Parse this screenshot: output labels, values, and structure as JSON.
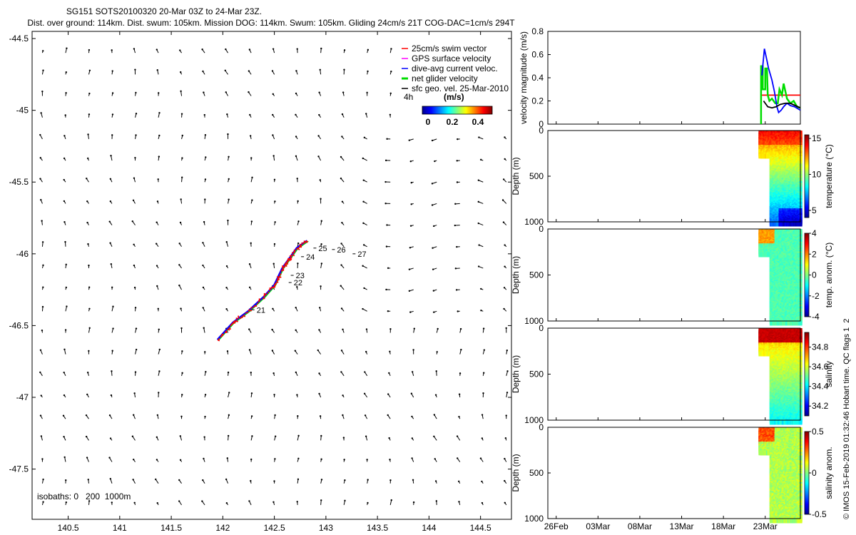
{
  "title": {
    "line1": "SG151 SOTS20100320 20-Mar 03Z to 24-Mar 23Z.",
    "line2": "Dist. over ground: 114km. Dist. swum: 105km. Mission DOG: 114km. Swum: 105km. Gliding 24cm/s 21T COG-DAC=1cm/s 294T"
  },
  "side_note": "© IMOS 15-Feb-2019 01:32:46 Hobart time. QC flags 1  2",
  "chart_data": [
    {
      "type": "scatter",
      "name": "map",
      "x": {
        "ticks": [
          140.5,
          141,
          141.5,
          142,
          142.5,
          143,
          143.5,
          144,
          144.5
        ],
        "range": [
          140.15,
          144.8
        ]
      },
      "y": {
        "ticks": [
          -44.5,
          -45,
          -45.5,
          -46,
          -46.5,
          -47,
          -47.5
        ],
        "range": [
          -47.85,
          -44.45
        ]
      },
      "legend": {
        "position": "top-right",
        "entries": [
          {
            "label": "25cm/s swim vector",
            "color": "#ff0000"
          },
          {
            "label": "GPS surface velocity",
            "color": "#ff00ff"
          },
          {
            "label": "dive-avg current veloc.",
            "color": "#0000ff"
          },
          {
            "label": "net glider velocity",
            "color": "#00dd00"
          },
          {
            "label": "sfc geo. vel. 25-Mar-2010",
            "color": "#000000"
          }
        ]
      },
      "colorbar": {
        "label": "(m/s)",
        "ticks": [
          "0",
          "0.2",
          "0.4"
        ],
        "scale_label": "4h"
      },
      "isobaths_label": "isobaths: 0   200  1000m",
      "track": [
        [
          141.95,
          -46.6
        ],
        [
          142.1,
          -46.48
        ],
        [
          142.25,
          -46.4
        ],
        [
          142.4,
          -46.3
        ],
        [
          142.5,
          -46.22
        ],
        [
          142.58,
          -46.1
        ],
        [
          142.65,
          -46.03
        ],
        [
          142.72,
          -45.96
        ],
        [
          142.82,
          -45.91
        ]
      ],
      "day_labels": [
        {
          "label": "21",
          "x": 142.3,
          "y": -46.39
        },
        {
          "label": "22",
          "x": 142.66,
          "y": -46.2
        },
        {
          "label": "23",
          "x": 142.68,
          "y": -46.15
        },
        {
          "label": "24",
          "x": 142.78,
          "y": -46.02
        },
        {
          "label": "25",
          "x": 142.9,
          "y": -45.96
        },
        {
          "label": "26",
          "x": 143.08,
          "y": -45.97
        },
        {
          "label": "27",
          "x": 143.28,
          "y": -46.0
        }
      ]
    },
    {
      "type": "line",
      "name": "velocity",
      "ylabel": "velocity magnitude (m/s)",
      "y_ticks": [
        0,
        0.2,
        0.4,
        0.6,
        0.8
      ],
      "ylim": [
        0,
        0.8
      ],
      "x_range_days": [
        -26,
        4.2
      ],
      "series": [
        {
          "color": "#ff0000",
          "values": [
            [
              -0.4,
              0.25
            ],
            [
              4.2,
              0.25
            ]
          ]
        },
        {
          "color": "#00dd00",
          "values": [
            [
              -0.5,
              0
            ],
            [
              -0.5,
              0.5
            ],
            [
              -0.3,
              0.5
            ],
            [
              -0.3,
              0.3
            ],
            [
              0,
              0.3
            ],
            [
              0,
              0.48
            ],
            [
              0.2,
              0.48
            ],
            [
              0.3,
              0.25
            ],
            [
              0.5,
              0.2
            ],
            [
              0.8,
              0.22
            ],
            [
              1.2,
              0.18
            ],
            [
              1.5,
              0.18
            ],
            [
              1.7,
              0.3
            ],
            [
              2.0,
              0.25
            ],
            [
              2.2,
              0.35
            ],
            [
              2.6,
              0.22
            ],
            [
              3.0,
              0.18
            ],
            [
              3.4,
              0.2
            ],
            [
              3.8,
              0.15
            ],
            [
              4.2,
              0.14
            ]
          ]
        },
        {
          "color": "#0000ff",
          "values": [
            [
              -0.4,
              0.42
            ],
            [
              -0.1,
              0.65
            ],
            [
              0.2,
              0.55
            ],
            [
              0.4,
              0.48
            ],
            [
              0.8,
              0.38
            ],
            [
              1.1,
              0.28
            ],
            [
              1.4,
              0.15
            ],
            [
              1.6,
              0.1
            ],
            [
              1.9,
              0.12
            ],
            [
              2.2,
              0.15
            ],
            [
              2.6,
              0.18
            ],
            [
              3.0,
              0.16
            ],
            [
              3.5,
              0.15
            ],
            [
              4.2,
              0.12
            ]
          ]
        },
        {
          "color": "#000000",
          "values": [
            [
              -0.2,
              0.2
            ],
            [
              0.3,
              0.15
            ],
            [
              0.8,
              0.14
            ],
            [
              1.3,
              0.15
            ],
            [
              1.8,
              0.17
            ],
            [
              2.4,
              0.18
            ],
            [
              3.0,
              0.18
            ],
            [
              3.6,
              0.16
            ],
            [
              4.2,
              0.14
            ]
          ]
        }
      ]
    },
    {
      "type": "heatmap",
      "name": "temperature",
      "ylabel": "Depth (m)",
      "cbar_label": "temperature (°C)",
      "cbar_ticks": [
        5,
        10,
        15
      ],
      "clim": [
        4,
        15.5
      ],
      "y_ticks": [
        0,
        500,
        1000
      ]
    },
    {
      "type": "heatmap",
      "name": "temp-anomaly",
      "ylabel": "Depth (m)",
      "cbar_label": "temp. anom. (°C)",
      "cbar_ticks": [
        -4,
        -2,
        0,
        2,
        4
      ],
      "clim": [
        -4,
        4
      ],
      "y_ticks": [
        0,
        500,
        1000
      ]
    },
    {
      "type": "heatmap",
      "name": "salinity",
      "ylabel": "Depth (m)",
      "cbar_label": "salinity",
      "cbar_ticks": [
        34.2,
        34.4,
        34.6,
        34.8
      ],
      "clim": [
        34.1,
        34.95
      ],
      "y_ticks": [
        0,
        500,
        1000
      ]
    },
    {
      "type": "heatmap",
      "name": "salinity-anomaly",
      "ylabel": "Depth (m)",
      "cbar_label": "salinity anom.",
      "cbar_ticks": [
        -0.5,
        0,
        0.5
      ],
      "clim": [
        -0.5,
        0.5
      ],
      "y_ticks": [
        0,
        500,
        1000
      ]
    }
  ],
  "time_axis": {
    "labels": [
      "26Feb",
      "03Mar",
      "08Mar",
      "13Mar",
      "18Mar",
      "23Mar"
    ],
    "offsets_days": [
      -25,
      -20,
      -15,
      -10,
      -5,
      0
    ]
  }
}
